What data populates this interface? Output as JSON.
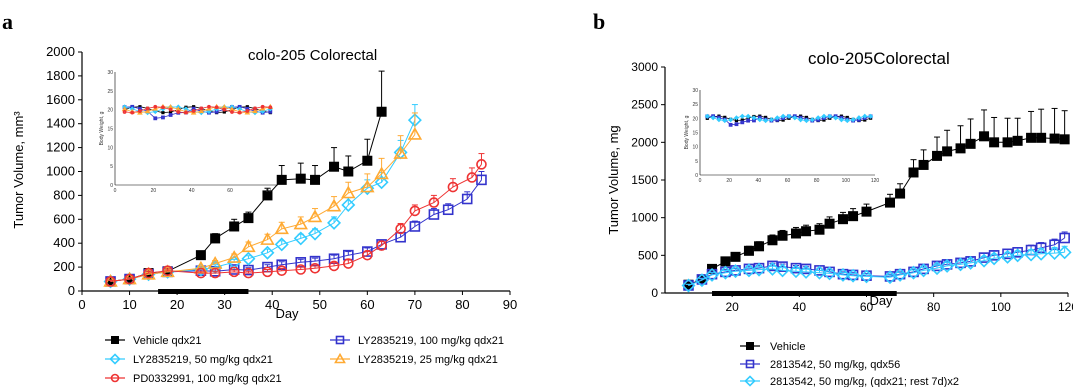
{
  "chart_data": [
    {
      "panel": "a",
      "type": "line",
      "title": "colo-205  Colorectal",
      "xlabel": "Day",
      "ylabel": "Tumor Volume, mm³",
      "xlim": [
        0,
        90
      ],
      "ylim": [
        0,
        2000
      ],
      "xticks": [
        0,
        10,
        20,
        30,
        40,
        50,
        60,
        70,
        80,
        90
      ],
      "yticks": [
        0,
        200,
        400,
        600,
        800,
        1000,
        1200,
        1400,
        1600,
        1800,
        2000
      ],
      "dosing_bar": [
        16,
        35
      ],
      "legend_placement": "bottom",
      "series": [
        {
          "name": "Vehicle qdx21",
          "color": "#000000",
          "marker": "square-filled",
          "x": [
            6,
            10,
            14,
            18,
            25,
            28,
            32,
            35,
            39,
            42,
            46,
            49,
            53,
            56,
            60,
            63
          ],
          "y": [
            80,
            100,
            150,
            165,
            300,
            440,
            540,
            610,
            800,
            930,
            940,
            930,
            1040,
            1000,
            1090,
            1500
          ],
          "err": [
            15,
            15,
            20,
            20,
            30,
            40,
            60,
            50,
            60,
            120,
            130,
            120,
            160,
            130,
            180,
            340
          ]
        },
        {
          "name": "LY2835219, 100 mg/kg qdx21",
          "color": "#3333cc",
          "marker": "square-open",
          "x": [
            6,
            10,
            14,
            18,
            25,
            28,
            32,
            35,
            39,
            42,
            46,
            49,
            53,
            56,
            60,
            63,
            67,
            70,
            74,
            77,
            81,
            84
          ],
          "y": [
            80,
            100,
            140,
            160,
            170,
            165,
            180,
            175,
            200,
            220,
            240,
            250,
            270,
            300,
            330,
            390,
            450,
            540,
            640,
            680,
            770,
            930
          ],
          "err": [
            10,
            10,
            15,
            15,
            20,
            20,
            20,
            20,
            20,
            25,
            25,
            25,
            30,
            30,
            30,
            35,
            40,
            45,
            50,
            50,
            60,
            70
          ]
        },
        {
          "name": "LY2835219, 50 mg/kg qdx21",
          "color": "#33ccff",
          "marker": "diamond-open",
          "x": [
            6,
            10,
            14,
            18,
            25,
            28,
            32,
            35,
            39,
            42,
            46,
            49,
            53,
            56,
            60,
            63,
            67,
            70
          ],
          "y": [
            80,
            100,
            140,
            160,
            180,
            200,
            240,
            270,
            320,
            390,
            440,
            480,
            570,
            720,
            860,
            910,
            1160,
            1430
          ],
          "err": [
            10,
            10,
            15,
            15,
            20,
            20,
            25,
            25,
            30,
            30,
            35,
            40,
            50,
            60,
            70,
            80,
            100,
            130
          ]
        },
        {
          "name": "LY2835219, 25 mg/kg qdx21",
          "color": "#ffaa33",
          "marker": "triangle-open",
          "x": [
            6,
            10,
            14,
            18,
            25,
            28,
            32,
            35,
            39,
            42,
            46,
            49,
            53,
            56,
            60,
            63,
            67,
            70
          ],
          "y": [
            80,
            100,
            140,
            160,
            190,
            230,
            280,
            370,
            430,
            520,
            560,
            620,
            710,
            820,
            870,
            980,
            1150,
            1310
          ],
          "err": [
            10,
            10,
            15,
            15,
            20,
            25,
            30,
            40,
            45,
            55,
            60,
            70,
            80,
            90,
            110,
            130,
            150,
            180
          ]
        },
        {
          "name": "PD0332991, 100 mg/kg qdx21",
          "color": "#ee3333",
          "marker": "circle-open",
          "x": [
            6,
            10,
            14,
            18,
            25,
            28,
            32,
            35,
            39,
            42,
            46,
            49,
            53,
            56,
            60,
            63,
            67,
            70,
            74,
            78,
            82,
            84
          ],
          "y": [
            80,
            100,
            150,
            170,
            150,
            150,
            160,
            150,
            160,
            170,
            180,
            190,
            210,
            230,
            300,
            380,
            520,
            670,
            740,
            870,
            950,
            1060
          ],
          "err": [
            10,
            10,
            15,
            15,
            15,
            15,
            15,
            15,
            20,
            20,
            20,
            20,
            25,
            30,
            30,
            35,
            45,
            50,
            60,
            70,
            80,
            90
          ]
        }
      ],
      "inset": {
        "xlim": [
          0,
          85
        ],
        "ylim": [
          0,
          30
        ],
        "xticks": [
          0,
          20,
          40,
          60,
          80
        ],
        "yticks": [
          0,
          5,
          10,
          15,
          20,
          25,
          30
        ],
        "ylabel": "Body Weight, g"
      }
    },
    {
      "panel": "b",
      "type": "line",
      "title": "colo-205Colorectal",
      "xlabel": "Day",
      "ylabel": "Tumor Volume, mg",
      "xlim": [
        0,
        120
      ],
      "ylim": [
        0,
        3000
      ],
      "xticks": [
        20,
        40,
        60,
        80,
        100,
        120
      ],
      "yticks": [
        0,
        500,
        1000,
        1500,
        2000,
        2500,
        3000
      ],
      "dosing_bar": [
        14,
        69
      ],
      "legend_placement": "bottom",
      "series": [
        {
          "name": "Vehicle",
          "color": "#000000",
          "marker": "square-filled",
          "x": [
            7,
            11,
            14,
            18,
            21,
            25,
            28,
            32,
            35,
            39,
            42,
            46,
            49,
            53,
            56,
            60,
            67,
            70,
            74,
            77,
            81,
            84,
            88,
            91,
            95,
            98,
            102,
            105,
            109,
            112,
            116,
            119
          ],
          "y": [
            110,
            180,
            320,
            420,
            480,
            560,
            620,
            700,
            760,
            790,
            820,
            840,
            920,
            980,
            1020,
            1080,
            1200,
            1320,
            1600,
            1700,
            1820,
            1880,
            1920,
            1980,
            2080,
            2000,
            2000,
            2020,
            2060,
            2060,
            2050,
            2040
          ],
          "err": [
            20,
            30,
            50,
            50,
            50,
            60,
            60,
            70,
            70,
            80,
            80,
            80,
            90,
            90,
            100,
            100,
            110,
            130,
            170,
            200,
            250,
            280,
            300,
            330,
            350,
            330,
            320,
            300,
            350,
            380,
            400,
            380
          ]
        },
        {
          "name": "2813542, 50 mg/kg, qdx56",
          "color": "#3333cc",
          "marker": "square-open",
          "x": [
            7,
            11,
            14,
            18,
            21,
            25,
            28,
            32,
            35,
            39,
            42,
            46,
            49,
            53,
            56,
            60,
            67,
            70,
            74,
            77,
            81,
            84,
            88,
            91,
            95,
            98,
            102,
            105,
            109,
            112,
            116,
            119
          ],
          "y": [
            100,
            180,
            250,
            280,
            300,
            320,
            330,
            360,
            350,
            330,
            320,
            300,
            280,
            250,
            240,
            230,
            220,
            250,
            280,
            320,
            360,
            380,
            400,
            420,
            470,
            500,
            520,
            540,
            570,
            600,
            640,
            730
          ],
          "err": [
            15,
            20,
            30,
            30,
            30,
            35,
            35,
            35,
            35,
            35,
            35,
            30,
            30,
            30,
            30,
            30,
            30,
            30,
            35,
            40,
            40,
            45,
            45,
            50,
            55,
            55,
            60,
            60,
            65,
            70,
            75,
            80
          ]
        },
        {
          "name": "2813542, 50 mg/kg, (qdx21; rest 7d)x2",
          "color": "#33ccff",
          "marker": "diamond-open",
          "x": [
            7,
            11,
            14,
            18,
            21,
            25,
            28,
            32,
            35,
            39,
            42,
            46,
            49,
            53,
            56,
            60,
            67,
            70,
            74,
            77,
            81,
            84,
            88,
            91,
            95,
            98,
            102,
            105,
            109,
            112,
            116,
            119
          ],
          "y": [
            100,
            170,
            240,
            270,
            290,
            300,
            310,
            320,
            300,
            290,
            280,
            270,
            260,
            240,
            230,
            220,
            210,
            240,
            270,
            300,
            330,
            360,
            380,
            400,
            430,
            460,
            480,
            500,
            510,
            520,
            530,
            540
          ],
          "err": [
            15,
            20,
            30,
            30,
            30,
            35,
            35,
            35,
            35,
            35,
            35,
            30,
            30,
            30,
            30,
            30,
            30,
            30,
            35,
            40,
            40,
            45,
            45,
            50,
            55,
            55,
            60,
            60,
            65,
            70,
            75,
            80
          ]
        }
      ],
      "inset": {
        "xlim": [
          0,
          120
        ],
        "ylim": [
          0,
          30
        ],
        "xticks": [
          0,
          20,
          40,
          60,
          80,
          100,
          120
        ],
        "yticks": [
          0,
          5,
          10,
          15,
          20,
          25,
          30
        ],
        "ylabel": "Body Weight, g"
      }
    }
  ]
}
